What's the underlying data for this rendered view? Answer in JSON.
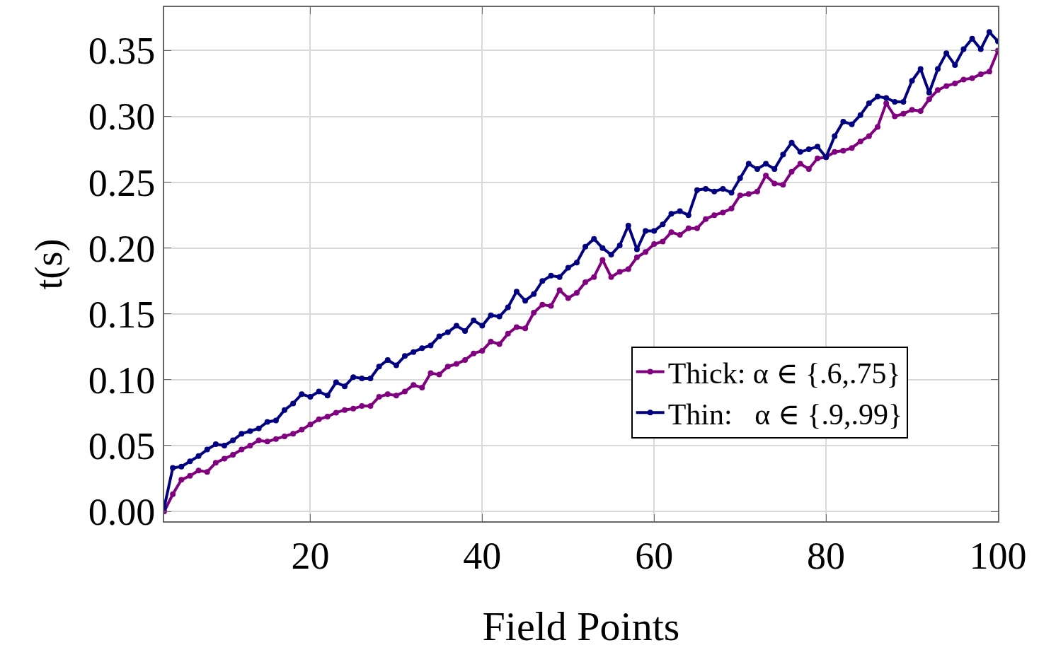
{
  "chart_data": {
    "type": "line",
    "xlabel": "Field Points",
    "ylabel": "t(s)",
    "x": [
      3,
      4,
      5,
      6,
      7,
      8,
      9,
      10,
      11,
      12,
      13,
      14,
      15,
      16,
      17,
      18,
      19,
      20,
      21,
      22,
      23,
      24,
      25,
      26,
      27,
      28,
      29,
      30,
      31,
      32,
      33,
      34,
      35,
      36,
      37,
      38,
      39,
      40,
      41,
      42,
      43,
      44,
      45,
      46,
      47,
      48,
      49,
      50,
      51,
      52,
      53,
      54,
      55,
      56,
      57,
      58,
      59,
      60,
      61,
      62,
      63,
      64,
      65,
      66,
      67,
      68,
      69,
      70,
      71,
      72,
      73,
      74,
      75,
      76,
      77,
      78,
      79,
      80,
      81,
      82,
      83,
      84,
      85,
      86,
      87,
      88,
      89,
      90,
      91,
      92,
      93,
      94,
      95,
      96,
      97,
      98,
      99,
      100
    ],
    "series": [
      {
        "name": "Thick: α ∈ {.6,.75}",
        "color": "#800080",
        "values": [
          0.0,
          0.013,
          0.024,
          0.027,
          0.031,
          0.03,
          0.037,
          0.04,
          0.043,
          0.047,
          0.05,
          0.054,
          0.053,
          0.055,
          0.057,
          0.059,
          0.062,
          0.066,
          0.07,
          0.072,
          0.075,
          0.077,
          0.078,
          0.08,
          0.08,
          0.087,
          0.089,
          0.088,
          0.091,
          0.096,
          0.094,
          0.105,
          0.104,
          0.11,
          0.112,
          0.115,
          0.12,
          0.122,
          0.129,
          0.127,
          0.135,
          0.14,
          0.139,
          0.151,
          0.157,
          0.156,
          0.168,
          0.162,
          0.166,
          0.174,
          0.178,
          0.191,
          0.178,
          0.182,
          0.184,
          0.193,
          0.197,
          0.203,
          0.205,
          0.212,
          0.21,
          0.215,
          0.215,
          0.222,
          0.225,
          0.227,
          0.23,
          0.24,
          0.241,
          0.243,
          0.255,
          0.249,
          0.248,
          0.258,
          0.264,
          0.26,
          0.268,
          0.269,
          0.273,
          0.274,
          0.276,
          0.281,
          0.285,
          0.292,
          0.31,
          0.3,
          0.302,
          0.305,
          0.304,
          0.313,
          0.32,
          0.323,
          0.325,
          0.328,
          0.329,
          0.332,
          0.334,
          0.35
        ]
      },
      {
        "name": "Thin:   α ∈ {.9,.99}",
        "color": "#000080",
        "values": [
          0.003,
          0.033,
          0.034,
          0.038,
          0.042,
          0.047,
          0.051,
          0.05,
          0.054,
          0.059,
          0.061,
          0.063,
          0.068,
          0.069,
          0.077,
          0.082,
          0.089,
          0.087,
          0.091,
          0.088,
          0.098,
          0.095,
          0.102,
          0.101,
          0.101,
          0.11,
          0.115,
          0.111,
          0.118,
          0.121,
          0.124,
          0.126,
          0.133,
          0.136,
          0.141,
          0.137,
          0.145,
          0.141,
          0.149,
          0.148,
          0.155,
          0.167,
          0.16,
          0.165,
          0.175,
          0.179,
          0.178,
          0.185,
          0.189,
          0.201,
          0.207,
          0.2,
          0.195,
          0.202,
          0.217,
          0.199,
          0.213,
          0.213,
          0.218,
          0.226,
          0.228,
          0.225,
          0.244,
          0.245,
          0.243,
          0.245,
          0.242,
          0.253,
          0.264,
          0.26,
          0.264,
          0.26,
          0.271,
          0.28,
          0.273,
          0.275,
          0.277,
          0.269,
          0.285,
          0.296,
          0.294,
          0.301,
          0.31,
          0.315,
          0.314,
          0.311,
          0.311,
          0.327,
          0.336,
          0.318,
          0.336,
          0.348,
          0.339,
          0.351,
          0.359,
          0.351,
          0.364,
          0.357
        ]
      }
    ],
    "xlim": [
      3,
      100
    ],
    "xticks": [
      20,
      40,
      60,
      80,
      100
    ],
    "ylim": [
      -0.0075,
      0.383
    ],
    "yticks": [
      {
        "value": 0,
        "label": "0.00"
      },
      {
        "value": 0.05,
        "label": "0.05"
      },
      {
        "value": 0.1,
        "label": "0.10"
      },
      {
        "value": 0.15,
        "label": "0.15"
      },
      {
        "value": 0.2,
        "label": "0.20"
      },
      {
        "value": 0.25,
        "label": "0.25"
      },
      {
        "value": 0.3,
        "label": "0.30"
      },
      {
        "value": 0.35,
        "label": "0.35"
      }
    ],
    "grid": true,
    "legend": "bottom right",
    "marker": "circle",
    "line_style": "solid"
  }
}
